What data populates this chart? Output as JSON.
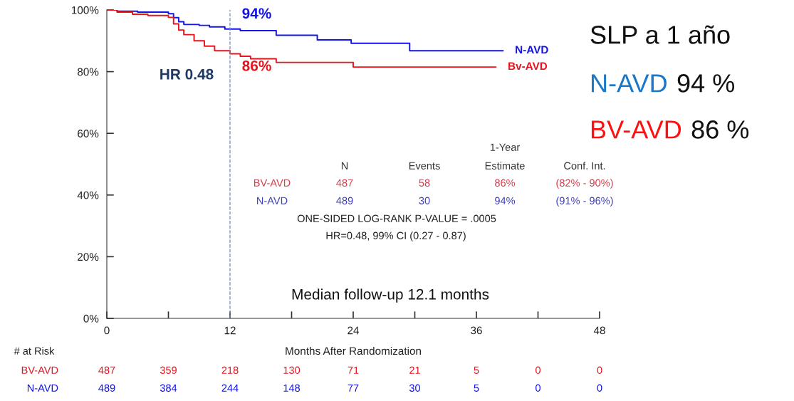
{
  "chart_data": {
    "type": "step",
    "xlabel": "Months After Randomization",
    "x": [
      0,
      1,
      2.5,
      4,
      6,
      6.5,
      7,
      7.5,
      8.5,
      9.5,
      10.5,
      12,
      13,
      14,
      16.5,
      24,
      37.9
    ],
    "series": [
      {
        "name": "N-AVD",
        "color": "#1414e6",
        "x": [
          0,
          1,
          3,
          6,
          6.5,
          7,
          7.5,
          9,
          10,
          11.5,
          13,
          16.5,
          20.5,
          23.8,
          29.5,
          38.6
        ],
        "values": [
          100,
          99.6,
          99.3,
          98.8,
          97.5,
          96.2,
          95.3,
          95,
          94.5,
          93.8,
          93.3,
          91.8,
          90.3,
          89.2,
          86.8,
          86.8
        ]
      },
      {
        "name": "Bv-AVD",
        "color": "#e8141e",
        "values": [
          100,
          99.3,
          98.6,
          98.2,
          97.6,
          95.5,
          93.5,
          92,
          90,
          88.3,
          86.8,
          85.8,
          85,
          84.2,
          83,
          81.5,
          81.5
        ]
      }
    ],
    "xlim": [
      0,
      48
    ],
    "ylim": [
      0,
      100
    ],
    "xticks": [
      0,
      {
        "value": 6,
        "label": null
      },
      12,
      {
        "value": 18,
        "label": null
      },
      24,
      {
        "value": 30,
        "label": null
      },
      36,
      {
        "value": 42,
        "label": null
      },
      48
    ],
    "yticks": [
      {
        "value": 0,
        "label": "0%"
      },
      {
        "value": 20,
        "label": "20%"
      },
      {
        "value": 40,
        "label": "40%"
      },
      {
        "value": 60,
        "label": "60%"
      },
      {
        "value": 80,
        "label": "80%"
      },
      {
        "value": 100,
        "label": "100%"
      }
    ],
    "ref_lines": [
      {
        "axis": "x",
        "value": 12,
        "color": "#6c8ebf",
        "line_style": "dashed"
      }
    ],
    "grid": false,
    "legend": false,
    "annotations": [
      {
        "text": "94%",
        "x": 12,
        "y": 94
      },
      {
        "text": "86%",
        "x": 12,
        "y": 86
      },
      "HR 0.48",
      "1-Year",
      "N",
      "Events",
      "Estimate",
      "Conf. Int.",
      "BV-AVD",
      "487",
      "58",
      "86%",
      "(82% - 90%)",
      "N-AVD",
      "489",
      "30",
      "94%",
      "(91% - 96%)",
      "ONE-SIDED LOG-RANK P-VALUE = .0005",
      "HR=0.48, 99% CI (0.27 - 0.87)",
      "Median follow-up 12.1 months",
      "# at Risk",
      "BV-AVD",
      "487",
      "359",
      "218",
      "130",
      "71",
      "21",
      "5",
      "0",
      "0",
      "N-AVD",
      "489",
      "384",
      "244",
      "148",
      "77",
      "30",
      "5",
      "0",
      "0",
      "SLP a 1 año",
      "N-AVD",
      "94 %",
      "BV-AVD",
      "86 %"
    ]
  }
}
